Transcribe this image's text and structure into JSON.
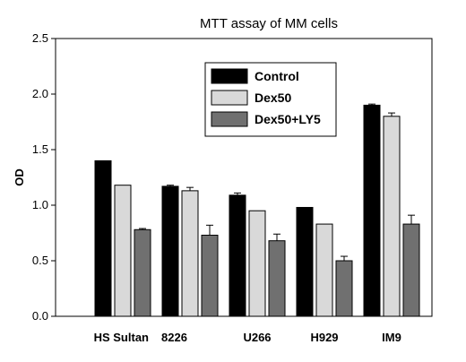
{
  "chart_data": {
    "type": "bar",
    "title": "MTT  assay of MM cells",
    "xlabel": "",
    "ylabel": "OD",
    "ylim": [
      0,
      2.5
    ],
    "yticks": [
      "0.0",
      "0.5",
      "1.0",
      "1.5",
      "2.0",
      "2.5"
    ],
    "categories": [
      "HS Sultan",
      "8226",
      "U266",
      "H929",
      "IM9"
    ],
    "grid": false,
    "legend_position": "top-right",
    "series": [
      {
        "name": "Control",
        "color": "#000000",
        "values": [
          1.4,
          1.17,
          1.09,
          0.98,
          1.9
        ],
        "errors": [
          0.0,
          0.01,
          0.02,
          0.0,
          0.01
        ]
      },
      {
        "name": "Dex50",
        "color": "#d9d9d9",
        "values": [
          1.18,
          1.13,
          0.95,
          0.83,
          1.8
        ],
        "errors": [
          0.0,
          0.03,
          0.0,
          0.0,
          0.03
        ]
      },
      {
        "name": "Dex50+LY5",
        "color": "#707070",
        "values": [
          0.78,
          0.73,
          0.68,
          0.5,
          0.83
        ],
        "errors": [
          0.01,
          0.09,
          0.06,
          0.04,
          0.08
        ]
      }
    ]
  }
}
